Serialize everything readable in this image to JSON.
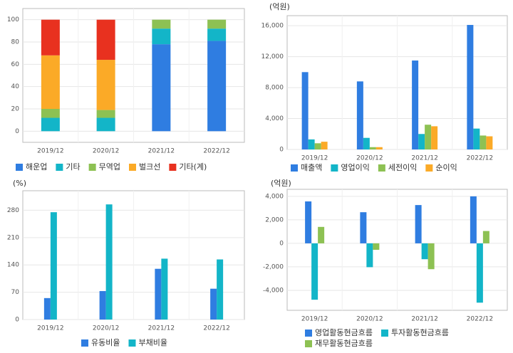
{
  "chart_data": [
    {
      "type": "stacked_bar",
      "categories": [
        "2019/12",
        "2020/12",
        "2021/12",
        "2022/12"
      ],
      "series": [
        {
          "name": "해운업",
          "color": "#2f7de1",
          "values": [
            0,
            0,
            78,
            81
          ]
        },
        {
          "name": "기타",
          "color": "#13b5c8",
          "values": [
            12,
            12,
            14,
            11
          ]
        },
        {
          "name": "무역업",
          "color": "#8dc153",
          "values": [
            8,
            7,
            8,
            8
          ]
        },
        {
          "name": "벌크선",
          "color": "#fbaa27",
          "values": [
            48,
            45,
            0,
            0
          ]
        },
        {
          "name": "기타(계)",
          "color": "#e8311f",
          "values": [
            32,
            36,
            0,
            0
          ]
        }
      ],
      "ylim": [
        -10,
        110
      ],
      "yticks": [
        0,
        20,
        40,
        60,
        80,
        100
      ],
      "grid": true
    },
    {
      "type": "bar",
      "unit": "(억원)",
      "categories": [
        "2019/12",
        "2020/12",
        "2021/12",
        "2022/12"
      ],
      "series": [
        {
          "name": "매출액",
          "color": "#2f7de1",
          "values": [
            10000,
            8800,
            11500,
            16100
          ]
        },
        {
          "name": "영업이익",
          "color": "#13b5c8",
          "values": [
            1300,
            1500,
            2000,
            2700
          ]
        },
        {
          "name": "세전이익",
          "color": "#8dc153",
          "values": [
            800,
            300,
            3200,
            1800
          ]
        },
        {
          "name": "순이익",
          "color": "#fbaa27",
          "values": [
            1000,
            300,
            3000,
            1700
          ]
        }
      ],
      "ylim": [
        0,
        17300
      ],
      "yticks": [
        0,
        {
          "value": 4000,
          "label": "4,000"
        },
        {
          "value": 8000,
          "label": "8,000"
        },
        {
          "value": 12000,
          "label": "12,000"
        },
        {
          "value": 16000,
          "label": "16,000"
        }
      ],
      "grid": true
    },
    {
      "type": "bar",
      "unit": "(%)",
      "categories": [
        "2019/12",
        "2020/12",
        "2021/12",
        "2022/12"
      ],
      "series": [
        {
          "name": "유동비율",
          "color": "#2f7de1",
          "values": [
            55,
            73,
            130,
            79
          ]
        },
        {
          "name": "부채비율",
          "color": "#13b5c8",
          "values": [
            275,
            295,
            156,
            154
          ]
        }
      ],
      "ylim": [
        0,
        330
      ],
      "yticks": [
        0,
        70,
        140,
        210,
        280
      ],
      "grid": true
    },
    {
      "type": "bar",
      "unit": "(억원)",
      "categories": [
        "2019/12",
        "2020/12",
        "2021/12",
        "2022/12"
      ],
      "series": [
        {
          "name": "영업활동현금흐름",
          "color": "#2f7de1",
          "values": [
            3570,
            2650,
            3260,
            4000
          ]
        },
        {
          "name": "투자활동현금흐름",
          "color": "#13b5c8",
          "values": [
            -4800,
            -2030,
            -1350,
            -5050
          ]
        },
        {
          "name": "재무활동현금흐름",
          "color": "#8dc153",
          "values": [
            1400,
            -550,
            -2200,
            1050
          ]
        }
      ],
      "ylim": [
        -5700,
        4600
      ],
      "yticks": [
        {
          "value": -4000,
          "label": "-4,000"
        },
        {
          "value": -2000,
          "label": "-2,000"
        },
        0,
        {
          "value": 2000,
          "label": "2,000"
        },
        {
          "value": 4000,
          "label": "4,000"
        }
      ],
      "grid": true
    }
  ]
}
